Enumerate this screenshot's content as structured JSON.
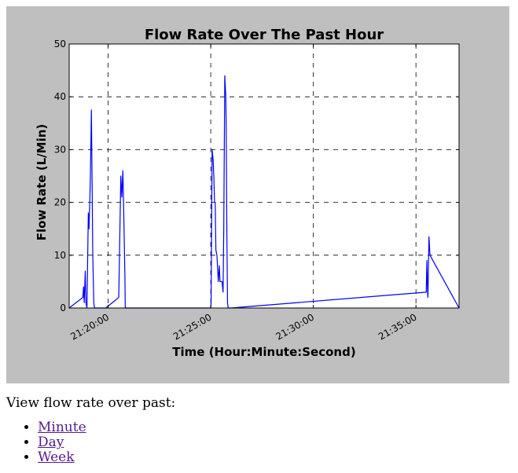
{
  "chart_data": {
    "type": "line",
    "title": "Flow Rate Over The Past Hour",
    "xlabel": "Time (Hour:Minute:Second)",
    "ylabel": "Flow Rate (L/Min)",
    "ylim": [
      0,
      50
    ],
    "yticks": [
      0,
      10,
      20,
      30,
      40,
      50
    ],
    "xlim": [
      "21:18:06",
      "21:37:06"
    ],
    "xticks": [
      "21:20:00",
      "21:25:00",
      "21:30:00",
      "21:35:00"
    ],
    "grid": true,
    "line_color": "#0000ff",
    "series": [
      {
        "x": [
          "21:18:06",
          "21:18:46",
          "21:18:48",
          "21:18:50",
          "21:18:53",
          "21:18:55",
          "21:18:58",
          "21:19:02",
          "21:19:04",
          "21:19:07",
          "21:19:08",
          "21:19:11",
          "21:19:13",
          "21:19:15",
          "21:19:17",
          "21:19:18",
          "21:19:20",
          "21:19:22",
          "21:19:24",
          "21:19:26",
          "21:19:29",
          "21:19:32",
          "21:19:35",
          "21:19:46",
          "21:19:53",
          "21:20:31",
          "21:20:37",
          "21:20:40",
          "21:20:43",
          "21:20:45",
          "21:20:49",
          "21:20:50",
          "21:20:51",
          "21:20:53",
          "21:25:00",
          "21:25:01",
          "21:25:04",
          "21:25:07",
          "21:25:09",
          "21:25:11",
          "21:25:13",
          "21:25:15",
          "21:25:18",
          "21:25:22",
          "21:25:25",
          "21:25:27",
          "21:25:30",
          "21:25:33",
          "21:25:36",
          "21:25:38",
          "21:25:41",
          "21:25:44",
          "21:25:45",
          "21:25:47",
          "21:25:49",
          "21:25:51",
          "21:25:53",
          "21:25:55",
          "21:25:59",
          "21:35:30",
          "21:35:32",
          "21:35:34",
          "21:35:35",
          "21:35:38",
          "21:35:41",
          "21:37:06"
        ],
        "values": [
          0,
          2,
          4,
          1,
          7,
          1,
          0,
          18,
          15,
          22,
          25,
          37.5,
          24,
          10,
          4,
          1,
          0,
          0,
          0,
          0,
          0,
          0,
          0,
          0,
          0,
          2,
          25,
          21,
          26,
          20,
          6,
          0,
          0,
          0,
          0,
          1,
          30,
          28,
          25,
          20,
          20,
          11,
          10,
          5,
          8,
          5,
          5,
          5,
          3,
          15,
          44,
          40,
          35,
          15,
          1,
          0,
          0,
          0,
          0,
          3,
          9,
          3,
          2,
          13.5,
          10,
          0
        ]
      }
    ]
  },
  "nav": {
    "prompt": "View flow rate over past:",
    "links": [
      "Minute",
      "Day",
      "Week"
    ]
  }
}
